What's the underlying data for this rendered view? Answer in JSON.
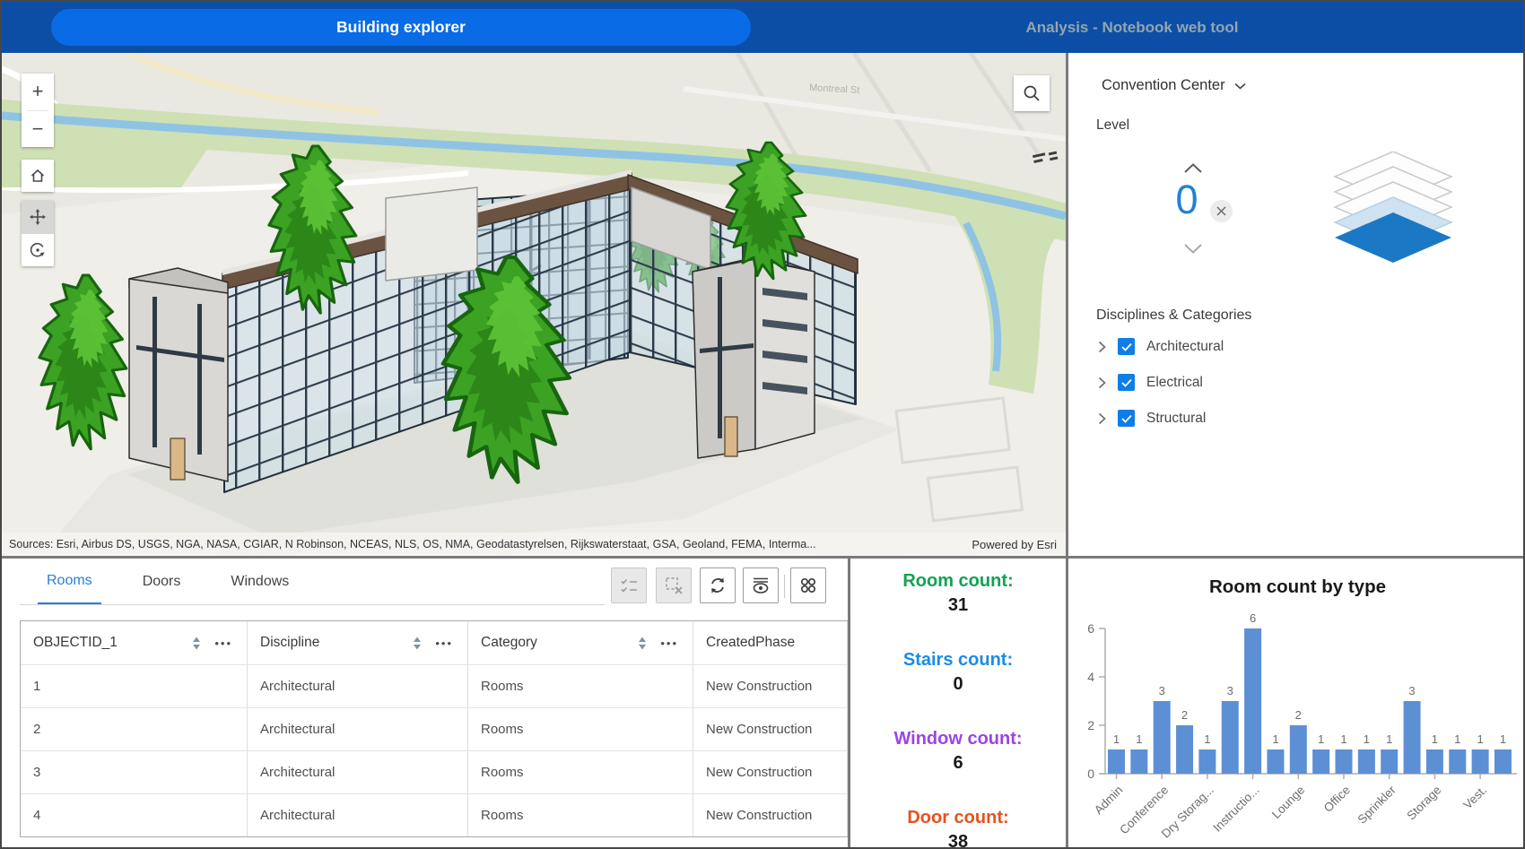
{
  "header": {
    "app_button_label": "Building explorer",
    "right_title": "Analysis - Notebook web tool",
    "bar_color": "#0c4ea6",
    "button_color": "#0a6be6"
  },
  "map": {
    "street_label": "Montreal St",
    "attribution": {
      "sources": "Sources: Esri, Airbus DS, USGS, NGA, NASA, CGIAR, N Robinson, NCEAS, NLS, OS, NMA, Geodatastyrelsen, Rijkswaterstaat, GSA, Geoland, FEMA, Interma...",
      "powered_by": "Powered by Esri"
    }
  },
  "icons": {
    "zoom_in": "+",
    "zoom_out": "−",
    "home": "house",
    "pan": "move-arrows",
    "rotate": "rotate-circle",
    "search": "magnifier",
    "select_rows": "checklist",
    "clear_selection": "dashed-box-x",
    "refresh": "circular-arrows",
    "show_selection": "eye-with-lines",
    "apps": "four-circles",
    "sort": "up-down-triangles",
    "column_menu": "•••",
    "building_dropdown": "chevron-down",
    "level_up": "chevron-up",
    "level_down": "chevron-down",
    "level_clear": "x-circle",
    "expand": "chevron-right",
    "checkbox": "check",
    "level_diagram": "stacked-layers"
  },
  "right_panel": {
    "building_selector": {
      "value": "Convention Center"
    },
    "level": {
      "label": "Level",
      "value": "0"
    },
    "disciplines": {
      "title": "Disciplines & Categories",
      "items": [
        {
          "label": "Architectural",
          "checked": true
        },
        {
          "label": "Electrical",
          "checked": true
        },
        {
          "label": "Structural",
          "checked": true
        }
      ]
    },
    "accent_color": "#0e7ee6"
  },
  "table_panel": {
    "tabs": [
      {
        "label": "Rooms",
        "active": true
      },
      {
        "label": "Doors",
        "active": false
      },
      {
        "label": "Windows",
        "active": false
      }
    ],
    "columns": [
      "OBJECTID_1",
      "Discipline",
      "Category",
      "CreatedPhase"
    ],
    "rows": [
      [
        "1",
        "Architectural",
        "Rooms",
        "New Construction"
      ],
      [
        "2",
        "Architectural",
        "Rooms",
        "New Construction"
      ],
      [
        "3",
        "Architectural",
        "Rooms",
        "New Construction"
      ],
      [
        "4",
        "Architectural",
        "Rooms",
        "New Construction"
      ]
    ]
  },
  "counts_panel": {
    "items": [
      {
        "label": "Room count:",
        "value": "31",
        "color": "#10a352"
      },
      {
        "label": "Stairs count:",
        "value": "0",
        "color": "#1b8ce6"
      },
      {
        "label": "Window count:",
        "value": "6",
        "color": "#9a45e6"
      },
      {
        "label": "Door count:",
        "value": "38",
        "color": "#e8511d"
      }
    ]
  },
  "chart_data": {
    "type": "bar",
    "title": "Room count by type",
    "values": [
      1,
      1,
      3,
      2,
      1,
      3,
      6,
      1,
      2,
      1,
      1,
      1,
      1,
      3,
      1,
      1,
      1,
      1
    ],
    "x_tick_labels": [
      "Admin",
      "Conference",
      "Dry Storag...",
      "Instructio...",
      "Lounge",
      "Office",
      "Sprinkler",
      "Storage",
      "Vest."
    ],
    "x_tick_every": 2,
    "y_ticks": [
      0,
      2,
      4,
      6
    ],
    "ylim": [
      0,
      6
    ],
    "bar_color": "#5d8fd5",
    "value_labels_shown": true,
    "grid": false,
    "legend": "none"
  }
}
